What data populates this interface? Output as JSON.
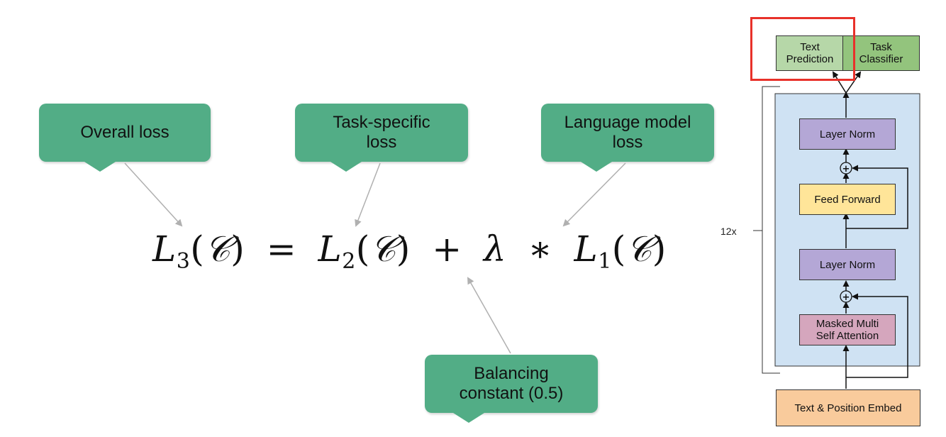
{
  "callouts": {
    "overall": {
      "lines": [
        "Overall loss"
      ]
    },
    "task": {
      "lines": [
        "Task-specific",
        "loss"
      ]
    },
    "lm": {
      "lines": [
        "Language model",
        "loss"
      ]
    },
    "balancing": {
      "lines": [
        "Balancing",
        "constant (0.5)"
      ]
    }
  },
  "formula": {
    "lhs_symbol": "L",
    "lhs_sub": "3",
    "arg": "𝒞",
    "eq": "=",
    "t1_symbol": "L",
    "t1_sub": "2",
    "plus": "+",
    "lambda": "λ",
    "times": "∗",
    "t2_symbol": "L",
    "t2_sub": "1"
  },
  "architecture": {
    "text_prediction": [
      "Text",
      "Prediction"
    ],
    "task_classifier": [
      "Task",
      "Classifier"
    ],
    "layer_norm_top": "Layer Norm",
    "add_symbol": "+",
    "feed_forward": "Feed Forward",
    "layer_norm_bottom": "Layer Norm",
    "attention": [
      "Masked Multi",
      "Self Attention"
    ],
    "repeat_label": "12x",
    "embed": "Text & Position Embed"
  },
  "colors": {
    "callout": "#52ad86",
    "text_prediction": "#b6d7a8",
    "task_classifier": "#93c47d",
    "transformer_block": "#cfe2f3",
    "layer_norm": "#b4a7d6",
    "feed_forward": "#ffe599",
    "attention": "#d5a6bd",
    "embed": "#f9cb9c",
    "highlight": "#e8312a"
  }
}
